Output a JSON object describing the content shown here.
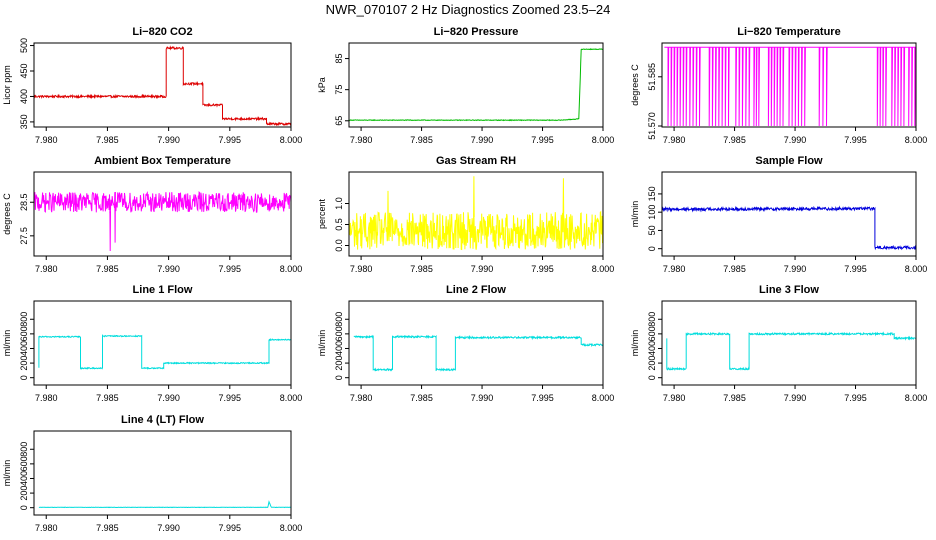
{
  "figure_title": "NWR_070107  2 Hz Diagnostics Zoomed 23.5–24",
  "chart_data": [
    {
      "id": "co2",
      "type": "line",
      "title": "Li−820 CO2",
      "ylabel": "Licor ppm",
      "color": "#dd0000",
      "xlim": [
        7.979,
        8.0
      ],
      "ylim": [
        340,
        505
      ],
      "yticks": [
        350,
        400,
        450,
        500
      ],
      "ytick_labels": [
        "350",
        "400",
        "450",
        "500"
      ],
      "x_ticks": [
        7.98,
        7.985,
        7.99,
        7.995,
        8.0
      ],
      "x_tick_labels": [
        "7.980",
        "7.985",
        "7.990",
        "7.995",
        "8.000"
      ],
      "x": [
        7.979,
        7.9898,
        7.9898,
        7.9912,
        7.9912,
        7.9928,
        7.9928,
        7.9944,
        7.9944,
        7.998,
        7.998,
        8.0
      ],
      "y": [
        400,
        400,
        495,
        495,
        425,
        425,
        383,
        383,
        356,
        356,
        346,
        346
      ],
      "noise": 2
    },
    {
      "id": "pressure",
      "type": "line",
      "title": "Li−820 Pressure",
      "ylabel": "kPa",
      "color": "#00bb00",
      "xlim": [
        7.979,
        8.0
      ],
      "ylim": [
        63,
        90
      ],
      "yticks": [
        65,
        75,
        85
      ],
      "ytick_labels": [
        "65",
        "75",
        "85"
      ],
      "x_ticks": [
        7.98,
        7.985,
        7.99,
        7.995,
        8.0
      ],
      "x_tick_labels": [
        "7.980",
        "7.985",
        "7.990",
        "7.995",
        "8.000"
      ],
      "x": [
        7.979,
        7.9965,
        7.998,
        7.9982,
        7.999,
        8.0
      ],
      "y": [
        65.2,
        65.2,
        65.6,
        88.0,
        88.0,
        88.0
      ],
      "noise": 0.1
    },
    {
      "id": "temperature",
      "type": "line",
      "title": "Li−820 Temperature",
      "ylabel": "degrees C",
      "color": "#ff00ff",
      "xlim": [
        7.979,
        8.0
      ],
      "ylim": [
        51.5697,
        51.5953
      ],
      "yticks": [
        51.57,
        51.585
      ],
      "ytick_labels": [
        "51.570",
        "51.585"
      ],
      "x_ticks": [
        7.98,
        7.985,
        7.99,
        7.995,
        8.0
      ],
      "x_tick_labels": [
        "7.980",
        "7.985",
        "7.990",
        "7.995",
        "8.000"
      ],
      "baseline": 51.594,
      "dip_to": 51.57,
      "dip_regions": [
        [
          7.9795,
          7.981
        ],
        [
          7.9813,
          7.9821
        ],
        [
          7.9829,
          7.9845
        ],
        [
          7.9851,
          7.9862
        ],
        [
          7.9866,
          7.987
        ],
        [
          7.9878,
          7.989
        ],
        [
          7.9895,
          7.9908
        ],
        [
          7.992,
          7.9926
        ],
        [
          7.9968,
          7.9975
        ],
        [
          7.998,
          7.999
        ],
        [
          7.9994,
          7.9999
        ]
      ]
    },
    {
      "id": "ambient",
      "type": "line",
      "title": "Ambient Box Temperature",
      "ylabel": "degrees C",
      "color": "#ff00ff",
      "xlim": [
        7.979,
        8.0
      ],
      "ylim": [
        26.9,
        29.4
      ],
      "yticks": [
        27.5,
        28.5
      ],
      "ytick_labels": [
        "27.5",
        "28.5"
      ],
      "x_ticks": [
        7.98,
        7.985,
        7.99,
        7.995,
        8.0
      ],
      "x_tick_labels": [
        "7.980",
        "7.985",
        "7.990",
        "7.995",
        "8.000"
      ],
      "x": [
        7.979,
        8.0
      ],
      "y": [
        28.5,
        28.5
      ],
      "noise": 0.3,
      "spikes": [
        {
          "x": 7.9852,
          "y": 27.05
        },
        {
          "x": 7.9856,
          "y": 27.3
        }
      ]
    },
    {
      "id": "rh",
      "type": "line",
      "title": "Gas Stream RH",
      "ylabel": "percent",
      "color": "#ffff00",
      "xlim": [
        7.979,
        8.0
      ],
      "ylim": [
        -0.25,
        1.75
      ],
      "yticks": [
        0.0,
        0.5,
        1.0
      ],
      "ytick_labels": [
        "0.0",
        "0.5",
        "1.0"
      ],
      "x_ticks": [
        7.98,
        7.985,
        7.99,
        7.995,
        8.0
      ],
      "x_tick_labels": [
        "7.980",
        "7.985",
        "7.990",
        "7.995",
        "8.000"
      ],
      "x": [
        7.979,
        8.0
      ],
      "y": [
        0.35,
        0.35
      ],
      "noise": 0.45,
      "spikes": [
        {
          "x": 7.9893,
          "y": 1.65
        },
        {
          "x": 7.9967,
          "y": 1.6
        },
        {
          "x": 7.9822,
          "y": 1.3
        }
      ]
    },
    {
      "id": "sample",
      "type": "line",
      "title": "Sample Flow",
      "ylabel": "ml/min",
      "color": "#0000dd",
      "xlim": [
        7.979,
        8.0
      ],
      "ylim": [
        -20,
        210
      ],
      "yticks": [
        0,
        50,
        100,
        150
      ],
      "ytick_labels": [
        "0",
        "50",
        "100",
        "150"
      ],
      "x_ticks": [
        7.98,
        7.985,
        7.99,
        7.995,
        8.0
      ],
      "x_tick_labels": [
        "7.980",
        "7.985",
        "7.990",
        "7.995",
        "8.000"
      ],
      "x": [
        7.979,
        7.9966,
        7.9966,
        8.0
      ],
      "y": [
        108,
        110,
        3,
        3
      ],
      "noise": 4
    },
    {
      "id": "line1",
      "type": "line",
      "title": "Line 1 Flow",
      "ylabel": "ml/min",
      "color": "#00dddd",
      "xlim": [
        7.979,
        8.0
      ],
      "ylim": [
        -100,
        1050
      ],
      "yticks": [
        0,
        200,
        400,
        600,
        800
      ],
      "ytick_labels": [
        "0",
        "200",
        "400",
        "600",
        "800"
      ],
      "x_ticks": [
        7.98,
        7.985,
        7.99,
        7.995,
        8.0
      ],
      "x_tick_labels": [
        "7.980",
        "7.985",
        "7.990",
        "7.995",
        "8.000"
      ],
      "x": [
        7.9794,
        7.9794,
        7.9828,
        7.9828,
        7.9846,
        7.9846,
        7.9878,
        7.9878,
        7.9896,
        7.9896,
        7.9982,
        7.9982,
        8.0
      ],
      "y": [
        130,
        560,
        560,
        130,
        130,
        570,
        570,
        130,
        130,
        200,
        200,
        520,
        520
      ],
      "noise": 8
    },
    {
      "id": "line2",
      "type": "line",
      "title": "Line 2 Flow",
      "ylabel": "ml/min",
      "color": "#00dddd",
      "xlim": [
        7.979,
        8.0
      ],
      "ylim": [
        -100,
        1050
      ],
      "yticks": [
        0,
        200,
        400,
        600,
        800
      ],
      "ytick_labels": [
        "0",
        "200",
        "400",
        "600",
        "800"
      ],
      "x_ticks": [
        7.98,
        7.985,
        7.99,
        7.995,
        8.0
      ],
      "x_tick_labels": [
        "7.980",
        "7.985",
        "7.990",
        "7.995",
        "8.000"
      ],
      "x": [
        7.9794,
        7.981,
        7.981,
        7.9826,
        7.9826,
        7.9862,
        7.9862,
        7.9878,
        7.9878,
        7.9982,
        7.9982,
        8.0
      ],
      "y": [
        560,
        560,
        110,
        110,
        560,
        560,
        110,
        110,
        550,
        550,
        450,
        450
      ],
      "noise": 12
    },
    {
      "id": "line3",
      "type": "line",
      "title": "Line 3 Flow",
      "ylabel": "ml/min",
      "color": "#00dddd",
      "xlim": [
        7.979,
        8.0
      ],
      "ylim": [
        -100,
        1050
      ],
      "yticks": [
        0,
        200,
        400,
        600,
        800
      ],
      "ytick_labels": [
        "0",
        "200",
        "400",
        "600",
        "800"
      ],
      "x_ticks": [
        7.98,
        7.985,
        7.99,
        7.995,
        8.0
      ],
      "x_tick_labels": [
        "7.980",
        "7.985",
        "7.990",
        "7.995",
        "8.000"
      ],
      "x": [
        7.9794,
        7.9794,
        7.981,
        7.981,
        7.9846,
        7.9846,
        7.9862,
        7.9862,
        7.9982,
        7.9982,
        8.0
      ],
      "y": [
        550,
        120,
        120,
        600,
        600,
        120,
        120,
        600,
        600,
        540,
        540
      ],
      "noise": 12
    },
    {
      "id": "line4",
      "type": "line",
      "title": "Line 4 (LT) Flow",
      "ylabel": "ml/min",
      "color": "#00dddd",
      "xlim": [
        7.979,
        8.0
      ],
      "ylim": [
        -100,
        1050
      ],
      "yticks": [
        0,
        200,
        400,
        600,
        800
      ],
      "ytick_labels": [
        "0",
        "200",
        "400",
        "600",
        "800"
      ],
      "x_ticks": [
        7.98,
        7.985,
        7.99,
        7.995,
        8.0
      ],
      "x_tick_labels": [
        "7.980",
        "7.985",
        "7.990",
        "7.995",
        "8.000"
      ],
      "x": [
        7.9794,
        7.9981,
        7.9982,
        7.9984,
        8.0
      ],
      "y": [
        5,
        5,
        80,
        5,
        5
      ],
      "noise": 2
    }
  ]
}
